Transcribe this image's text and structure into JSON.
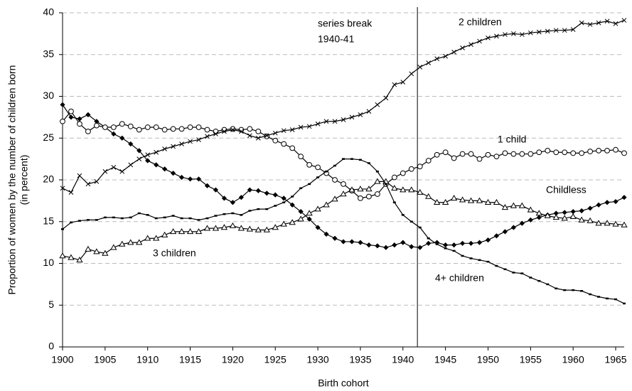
{
  "chart_data": {
    "type": "line",
    "xlabel": "Birth cohort",
    "ylabel": [
      "Proportion of women by the number of children born",
      "(in percent)"
    ],
    "xlim": [
      1900,
      1966
    ],
    "ylim": [
      0,
      40
    ],
    "xticks": [
      1900,
      1905,
      1910,
      1915,
      1920,
      1925,
      1930,
      1935,
      1940,
      1945,
      1950,
      1955,
      1960,
      1965
    ],
    "yticks": [
      0,
      5,
      10,
      15,
      20,
      25,
      30,
      35,
      40
    ],
    "grid": true,
    "annotation": {
      "x": 1941.7,
      "text": [
        "series break",
        "1940-41"
      ]
    },
    "x": [
      1900,
      1901,
      1902,
      1903,
      1904,
      1905,
      1906,
      1907,
      1908,
      1909,
      1910,
      1911,
      1912,
      1913,
      1914,
      1915,
      1916,
      1917,
      1918,
      1919,
      1920,
      1921,
      1922,
      1923,
      1924,
      1925,
      1926,
      1927,
      1928,
      1929,
      1930,
      1931,
      1932,
      1933,
      1934,
      1935,
      1936,
      1937,
      1938,
      1939,
      1940,
      1941,
      1942,
      1943,
      1944,
      1945,
      1946,
      1947,
      1948,
      1949,
      1950,
      1951,
      1952,
      1953,
      1954,
      1955,
      1956,
      1957,
      1958,
      1959,
      1960,
      1961,
      1962,
      1963,
      1964,
      1965,
      1966
    ],
    "series": [
      {
        "name": "Childless",
        "color": "#000000",
        "marker": "diamond",
        "values": [
          29,
          27.5,
          27.3,
          27.8,
          27,
          26.3,
          25.5,
          25,
          24.3,
          23.5,
          22.3,
          21.8,
          21.3,
          20.8,
          20.3,
          20.1,
          20.1,
          19.3,
          18.8,
          17.8,
          17.3,
          17.9,
          18.8,
          18.7,
          18.4,
          18.2,
          17.8,
          17,
          16.2,
          15.3,
          14.3,
          13.5,
          13,
          12.6,
          12.6,
          12.5,
          12.2,
          12.1,
          11.9,
          12.2,
          12.5,
          12,
          11.9,
          12.4,
          12.5,
          12.2,
          12.2,
          12.4,
          12.4,
          12.5,
          12.8,
          13.3,
          13.8,
          14.3,
          14.8,
          15.2,
          15.5,
          15.8,
          16,
          16.1,
          16.2,
          16.3,
          16.6,
          17,
          17.3,
          17.4,
          17.9
        ]
      },
      {
        "name": "1 child",
        "color": "#000000",
        "marker": "circle",
        "values": [
          27,
          28.2,
          26.7,
          25.8,
          26.5,
          26.3,
          26.3,
          26.7,
          26.4,
          26,
          26.3,
          26.3,
          26,
          26.1,
          26.1,
          26.3,
          26.3,
          26,
          25.8,
          26,
          26.1,
          26,
          26.1,
          25.8,
          25.2,
          24.7,
          24.3,
          23.8,
          22.8,
          21.8,
          21.5,
          20.8,
          20,
          19.5,
          18.7,
          17.8,
          18,
          18.3,
          19.5,
          20.3,
          20.8,
          21.3,
          21.6,
          22.3,
          23,
          23.3,
          22.6,
          23.1,
          23.1,
          22.5,
          23,
          22.8,
          23.2,
          23.1,
          23.1,
          23.1,
          23.3,
          23.5,
          23.3,
          23.3,
          23.2,
          23.2,
          23.4,
          23.5,
          23.5,
          23.6,
          23.2
        ]
      },
      {
        "name": "2 children",
        "color": "#000000",
        "marker": "x",
        "values": [
          19,
          18.5,
          20.5,
          19.5,
          19.8,
          21,
          21.5,
          21,
          21.8,
          22.5,
          23,
          23.3,
          23.7,
          24,
          24.3,
          24.6,
          24.8,
          25.2,
          25.5,
          25.8,
          26,
          25.8,
          25.3,
          25,
          25.3,
          25.6,
          25.9,
          26,
          26.3,
          26.4,
          26.7,
          27,
          27,
          27.2,
          27.5,
          27.8,
          28.2,
          29,
          29.8,
          31.4,
          31.7,
          32.7,
          33.5,
          34,
          34.5,
          34.8,
          35.3,
          35.8,
          36.2,
          36.6,
          37,
          37.2,
          37.4,
          37.5,
          37.4,
          37.6,
          37.7,
          37.8,
          37.9,
          37.9,
          38,
          38.8,
          38.6,
          38.8,
          39,
          38.7,
          39.1
        ]
      },
      {
        "name": "3 children",
        "color": "#000000",
        "marker": "triangle",
        "values": [
          10.9,
          10.7,
          10.4,
          11.7,
          11.4,
          11.2,
          11.9,
          12.3,
          12.5,
          12.5,
          13,
          13,
          13.4,
          13.8,
          13.8,
          13.8,
          13.8,
          14.2,
          14.2,
          14.3,
          14.5,
          14.2,
          14.1,
          14,
          14,
          14.3,
          14.7,
          14.9,
          15.3,
          16,
          16.5,
          17,
          17.7,
          18.3,
          18.8,
          18.9,
          18.9,
          19.8,
          19.8,
          19,
          18.8,
          18.8,
          18.5,
          18,
          17.3,
          17.3,
          17.8,
          17.6,
          17.5,
          17.5,
          17.3,
          17.3,
          16.7,
          16.9,
          16.9,
          16.4,
          16,
          15.7,
          15.5,
          15.4,
          15.6,
          15.2,
          15.1,
          14.8,
          14.8,
          14.7,
          14.6
        ]
      },
      {
        "name": "4+ children",
        "color": "#000000",
        "marker": "dash",
        "values": [
          14.1,
          14.9,
          15.1,
          15.2,
          15.2,
          15.5,
          15.5,
          15.4,
          15.5,
          16,
          15.8,
          15.4,
          15.5,
          15.7,
          15.4,
          15.4,
          15.2,
          15.4,
          15.7,
          15.9,
          16,
          15.8,
          16.3,
          16.5,
          16.5,
          16.9,
          17.3,
          18,
          19,
          19.5,
          20.3,
          21,
          21.7,
          22.5,
          22.5,
          22.4,
          22,
          21,
          19.5,
          17.3,
          15.8,
          15,
          14.3,
          13,
          12.3,
          11.8,
          11.5,
          10.9,
          10.6,
          10.4,
          10.2,
          9.7,
          9.3,
          8.9,
          8.8,
          8.3,
          7.9,
          7.5,
          7,
          6.8,
          6.8,
          6.7,
          6.3,
          6,
          5.8,
          5.7,
          5.2
        ]
      }
    ]
  }
}
